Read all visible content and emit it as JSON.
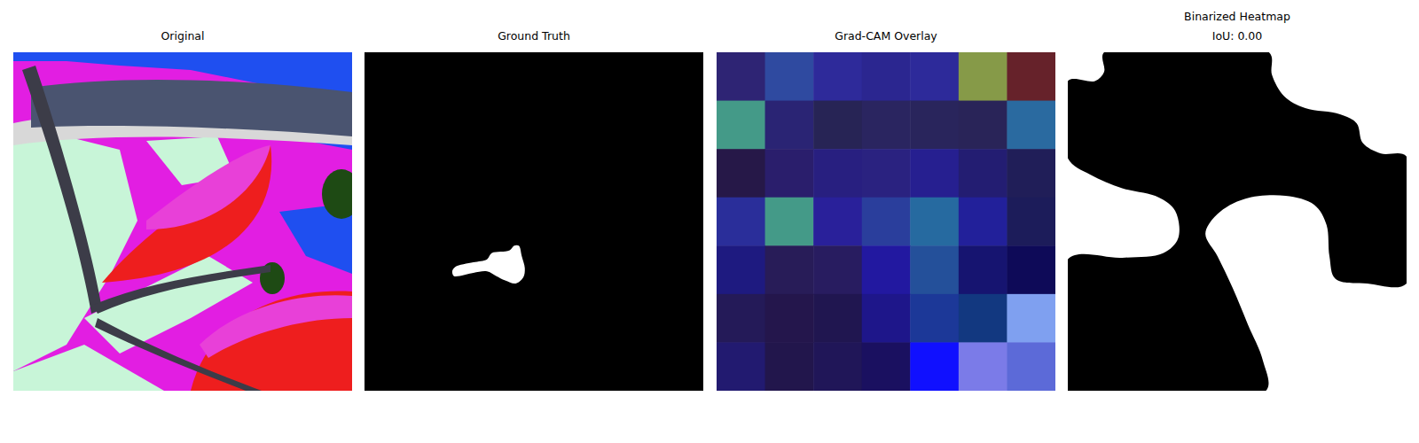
{
  "chart_data": [
    {
      "type": "image",
      "title": "Original"
    },
    {
      "type": "mask",
      "title": "Ground Truth",
      "xlim": [
        0,
        224
      ],
      "ylim": [
        0,
        224
      ],
      "tick_labels": false,
      "color": "#ffffff",
      "x": [
        58,
        60,
        72,
        81,
        84,
        90,
        96,
        99,
        102,
        104,
        106,
        105,
        100,
        93,
        87,
        81,
        72,
        63,
        59
      ],
      "y": [
        145,
        142,
        139,
        137,
        133,
        132,
        131,
        128,
        128,
        135,
        143,
        149,
        153,
        151,
        148,
        145,
        146,
        148,
        148
      ]
    },
    {
      "type": "heatmap",
      "title": "Grad-CAM Overlay",
      "tick_labels": false,
      "colors": [
        [
          "#2e2474",
          "#2f4aa0",
          "#2e2a9a",
          "#2b2690",
          "#2d2a9a",
          "#869a48",
          "#66222a"
        ],
        [
          "#449a88",
          "#2a2474",
          "#272455",
          "#2a2560",
          "#29255c",
          "#292458",
          "#2a6aa0"
        ],
        [
          "#261848",
          "#2a1e6c",
          "#281f80",
          "#2a2280",
          "#261f90",
          "#231d72",
          "#201e58"
        ],
        [
          "#2a2e9a",
          "#449a88",
          "#29209a",
          "#2a3e9c",
          "#266aa0",
          "#22209a",
          "#1c1c5a"
        ],
        [
          "#1e1a80",
          "#281c58",
          "#281c60",
          "#2218a0",
          "#24509a",
          "#161470",
          "#0e0a58"
        ],
        [
          "#241a58",
          "#24164c",
          "#201650",
          "#1e168a",
          "#1c3898",
          "#123880",
          "#7fa0f0"
        ],
        [
          "#221a70",
          "#22164c",
          "#201658",
          "#1a1060",
          "#1010ff",
          "#7b7be8",
          "#5c6ad8"
        ]
      ]
    },
    {
      "type": "mask",
      "title": "Binarized Heatmap",
      "subtitle": "IoU: 0.00",
      "xlim": [
        0,
        224
      ],
      "ylim": [
        0,
        224
      ],
      "tick_labels": false,
      "color": "#000000",
      "x": [
        0,
        18,
        24,
        24,
        133,
        135,
        143,
        157,
        180,
        191,
        195,
        207,
        224,
        224,
        198,
        177,
        173,
        171,
        163,
        144,
        117,
        99,
        91,
        99,
        109,
        119,
        129,
        131,
        0,
        0,
        36,
        63,
        73,
        71,
        60,
        36,
        15,
        0
      ],
      "y": [
        19,
        19,
        13,
        0,
        0,
        15,
        29,
        37,
        41,
        47,
        60,
        67,
        69,
        153,
        153,
        150,
        135,
        114,
        101,
        95,
        97,
        107,
        120,
        135,
        156,
        180,
        204,
        224,
        224,
        137,
        136,
        133,
        123,
        105,
        96,
        90,
        81,
        70
      ]
    }
  ]
}
